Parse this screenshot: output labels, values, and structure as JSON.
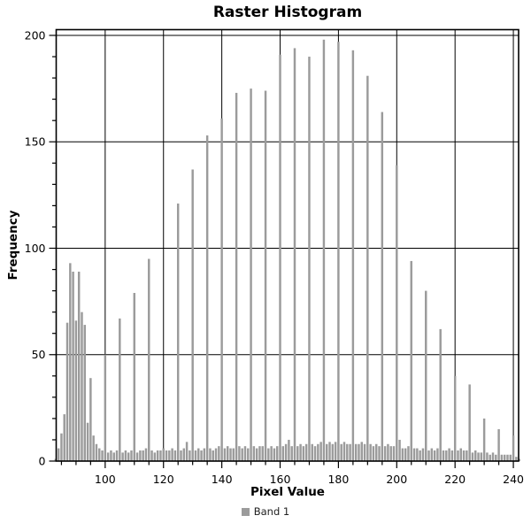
{
  "chart_data": {
    "type": "bar",
    "title": "Raster Histogram",
    "xlabel": "Pixel Value",
    "ylabel": "Frequency",
    "legend": [
      {
        "label": "Band 1",
        "color": "#9b9b9b"
      }
    ],
    "legend_position": "bottom-center",
    "grid": true,
    "bar_color": "#9b9b9b",
    "axis_color": "#000000",
    "background_color": "#ffffff",
    "xlim": [
      83.2,
      241.8
    ],
    "ylim": [
      0,
      202.7
    ],
    "x_major_ticks": [
      100,
      120,
      140,
      160,
      180,
      200,
      220,
      240
    ],
    "x_minor_tick_step": 5,
    "y_major_ticks": [
      0,
      50,
      100,
      150,
      200
    ],
    "y_minor_tick_step": 10,
    "x_start": 83,
    "frequencies": [
      1,
      6,
      13,
      22,
      65,
      93,
      89,
      66,
      89,
      70,
      64,
      18,
      39,
      12,
      8,
      6,
      5,
      50,
      4,
      5,
      4,
      5,
      67,
      4,
      5,
      4,
      5,
      79,
      4,
      5,
      5,
      6,
      95,
      5,
      4,
      5,
      5,
      6,
      5,
      5,
      6,
      5,
      121,
      5,
      6,
      9,
      5,
      137,
      5,
      6,
      5,
      6,
      153,
      6,
      5,
      6,
      7,
      161,
      6,
      7,
      6,
      6,
      173,
      7,
      6,
      7,
      6,
      175,
      7,
      6,
      7,
      7,
      174,
      6,
      7,
      6,
      7,
      191,
      7,
      8,
      10,
      7,
      194,
      7,
      8,
      7,
      8,
      190,
      8,
      7,
      8,
      9,
      198,
      8,
      9,
      8,
      9,
      197,
      8,
      9,
      8,
      8,
      193,
      8,
      8,
      9,
      8,
      181,
      8,
      7,
      8,
      7,
      164,
      7,
      8,
      7,
      7,
      139,
      10,
      6,
      6,
      7,
      94,
      6,
      6,
      5,
      6,
      80,
      5,
      6,
      5,
      6,
      62,
      5,
      5,
      6,
      5,
      40,
      5,
      6,
      5,
      5,
      36,
      4,
      5,
      4,
      4,
      20,
      4,
      3,
      4,
      3,
      15,
      3,
      3,
      3,
      3,
      12,
      2,
      1
    ]
  }
}
